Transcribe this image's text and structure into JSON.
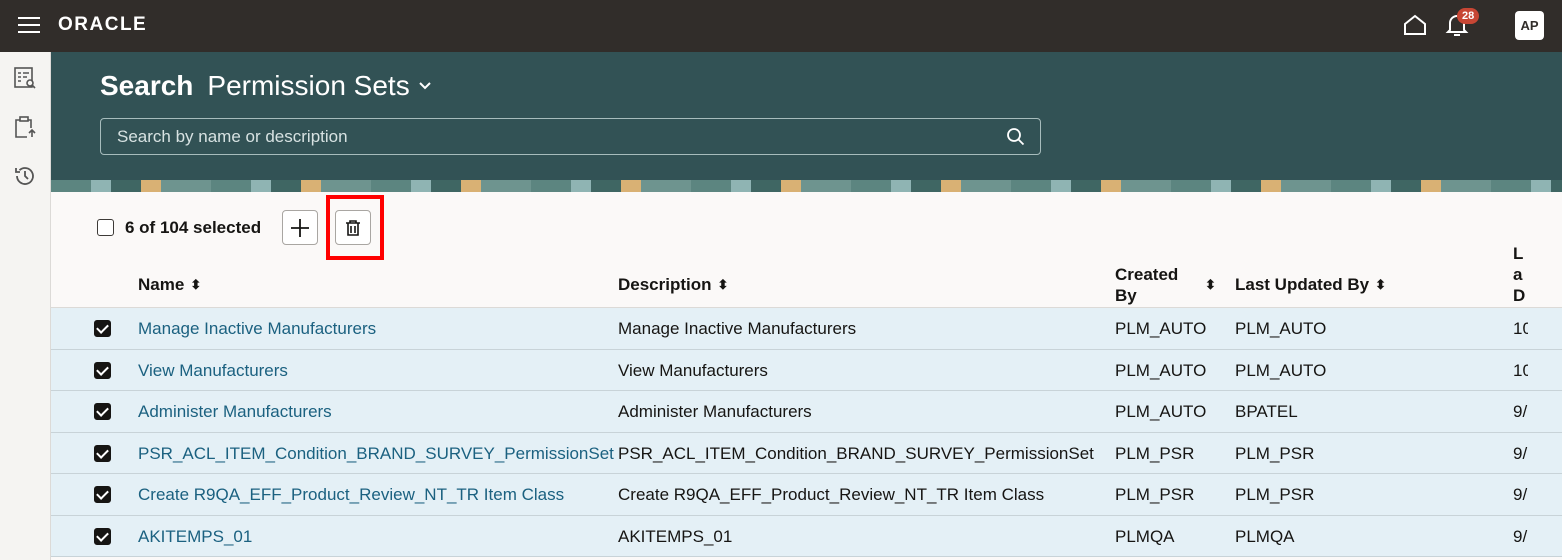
{
  "app": {
    "logo": "ORACLE",
    "notifications_count": "28",
    "avatar_initials": "AP"
  },
  "sidebar": {
    "items": [
      {
        "icon": "search-list-icon"
      },
      {
        "icon": "clipboard-upload-icon"
      },
      {
        "icon": "history-icon"
      }
    ]
  },
  "header": {
    "title_bold": "Search",
    "title": "Permission Sets",
    "search_placeholder": "Search by name or description"
  },
  "toolbar": {
    "selection_text": "6 of 104 selected",
    "add_icon": "plus-icon",
    "delete_icon": "trash-icon"
  },
  "table": {
    "columns": [
      "Name",
      "Description",
      "Created By",
      "Last Updated By",
      "La Da"
    ],
    "rows": [
      {
        "checked": true,
        "name": "Manage Inactive Manufacturers",
        "description": "Manage Inactive Manufacturers",
        "created_by": "PLM_AUTO",
        "last_updated_by": "PLM_AUTO",
        "last_date": "10"
      },
      {
        "checked": true,
        "name": "View Manufacturers",
        "description": "View Manufacturers",
        "created_by": "PLM_AUTO",
        "last_updated_by": "PLM_AUTO",
        "last_date": "10"
      },
      {
        "checked": true,
        "name": "Administer Manufacturers",
        "description": "Administer Manufacturers",
        "created_by": "PLM_AUTO",
        "last_updated_by": "BPATEL",
        "last_date": "9/"
      },
      {
        "checked": true,
        "name": "PSR_ACL_ITEM_Condition_BRAND_SURVEY_PermissionSet",
        "description": "PSR_ACL_ITEM_Condition_BRAND_SURVEY_PermissionSet",
        "created_by": "PLM_PSR",
        "last_updated_by": "PLM_PSR",
        "last_date": "9/"
      },
      {
        "checked": true,
        "name": "Create R9QA_EFF_Product_Review_NT_TR Item Class",
        "description": "Create R9QA_EFF_Product_Review_NT_TR Item Class",
        "created_by": "PLM_PSR",
        "last_updated_by": "PLM_PSR",
        "last_date": "9/"
      },
      {
        "checked": true,
        "name": "AKITEMPS_01",
        "description": "AKITEMPS_01",
        "created_by": "PLMQA",
        "last_updated_by": "PLMQA",
        "last_date": "9/"
      }
    ]
  }
}
